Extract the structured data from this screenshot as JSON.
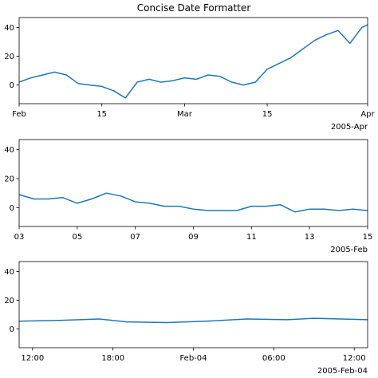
{
  "title": "Concise Date Formatter",
  "colors": {
    "line": "#1f77b4",
    "axes": "#000000",
    "background": "#ffffff"
  },
  "chart_data": [
    {
      "type": "line",
      "title": "Concise Date Formatter",
      "xlim": [
        "2005-02-01",
        "2005-04-01"
      ],
      "ylim": [
        -13,
        47
      ],
      "yticks": [
        0,
        20,
        40
      ],
      "xticklabels": [
        "Feb",
        "15",
        "Mar",
        "15",
        "Apr"
      ],
      "xticks_at": [
        "2005-02-01",
        "2005-02-15",
        "2005-03-01",
        "2005-03-15",
        "2005-04-01"
      ],
      "offset_label": "2005-Apr",
      "grid": false,
      "series": [
        {
          "x": [
            "2005-02-01",
            "2005-02-03",
            "2005-02-05",
            "2005-02-07",
            "2005-02-09",
            "2005-02-11",
            "2005-02-13",
            "2005-02-15",
            "2005-02-17",
            "2005-02-19",
            "2005-02-21",
            "2005-02-23",
            "2005-02-25",
            "2005-02-27",
            "2005-03-01",
            "2005-03-03",
            "2005-03-05",
            "2005-03-07",
            "2005-03-09",
            "2005-03-11",
            "2005-03-13",
            "2005-03-15",
            "2005-03-17",
            "2005-03-19",
            "2005-03-21",
            "2005-03-23",
            "2005-03-25",
            "2005-03-27",
            "2005-03-29",
            "2005-03-31",
            "2005-04-01"
          ],
          "y": [
            2,
            5,
            7,
            9,
            7,
            1,
            0,
            -1,
            -4,
            -9,
            2,
            4,
            2,
            3,
            5,
            4,
            7,
            6,
            2,
            0,
            2,
            11,
            15,
            19,
            25,
            31,
            35,
            38,
            29,
            40,
            42
          ]
        }
      ]
    },
    {
      "type": "line",
      "xlim": [
        "2005-02-03",
        "2005-02-15"
      ],
      "ylim": [
        -13,
        47
      ],
      "yticks": [
        0,
        20,
        40
      ],
      "xticklabels": [
        "03",
        "05",
        "07",
        "09",
        "11",
        "13",
        "15"
      ],
      "xticks_at": [
        "2005-02-03",
        "2005-02-05",
        "2005-02-07",
        "2005-02-09",
        "2005-02-11",
        "2005-02-13",
        "2005-02-15"
      ],
      "offset_label": "2005-Feb",
      "grid": false,
      "series": [
        {
          "x": [
            "2005-02-03",
            "2005-02-03T12:00",
            "2005-02-04",
            "2005-02-04T12:00",
            "2005-02-05",
            "2005-02-05T12:00",
            "2005-02-06",
            "2005-02-06T12:00",
            "2005-02-07",
            "2005-02-07T12:00",
            "2005-02-08",
            "2005-02-08T12:00",
            "2005-02-09",
            "2005-02-09T12:00",
            "2005-02-10",
            "2005-02-10T12:00",
            "2005-02-11",
            "2005-02-11T12:00",
            "2005-02-12",
            "2005-02-12T12:00",
            "2005-02-13",
            "2005-02-13T12:00",
            "2005-02-14",
            "2005-02-14T12:00",
            "2005-02-15"
          ],
          "y": [
            9,
            6,
            6,
            7,
            3,
            6,
            10,
            8,
            4,
            3,
            1,
            1,
            -1,
            -2,
            -2,
            -2,
            1,
            1,
            2,
            -3,
            -1,
            -1,
            -2,
            -1,
            -2
          ]
        }
      ]
    },
    {
      "type": "line",
      "xlim": [
        "2005-02-03T11:00",
        "2005-02-04T13:00"
      ],
      "ylim": [
        -13,
        47
      ],
      "yticks": [
        0,
        20,
        40
      ],
      "xticklabels": [
        "12:00",
        "18:00",
        "Feb-04",
        "06:00",
        "12:00"
      ],
      "xticks_at": [
        "2005-02-03T12:00",
        "2005-02-03T18:00",
        "2005-02-04T00:00",
        "2005-02-04T06:00",
        "2005-02-04T12:00"
      ],
      "offset_label": "2005-Feb-04",
      "grid": false,
      "series": [
        {
          "x": [
            "2005-02-03T11:00",
            "2005-02-03T14:00",
            "2005-02-03T17:00",
            "2005-02-03T19:00",
            "2005-02-03T22:00",
            "2005-02-04T01:00",
            "2005-02-04T04:00",
            "2005-02-04T07:00",
            "2005-02-04T09:00",
            "2005-02-04T13:00"
          ],
          "y": [
            5.5,
            6,
            7,
            5,
            4.5,
            5.5,
            7,
            6.5,
            7.5,
            6.5
          ]
        }
      ]
    }
  ]
}
